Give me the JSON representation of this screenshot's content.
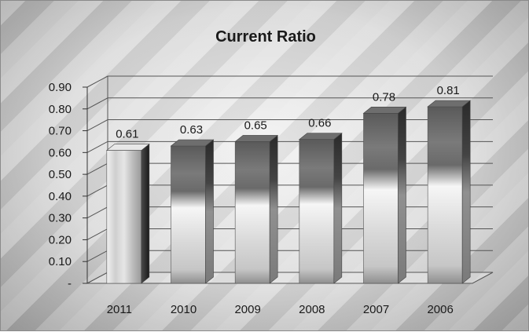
{
  "chart_data": {
    "type": "bar",
    "title": "Current Ratio",
    "categories": [
      "2011",
      "2010",
      "2009",
      "2008",
      "2007",
      "2006"
    ],
    "values": [
      0.61,
      0.63,
      0.65,
      0.66,
      0.78,
      0.81
    ],
    "data_labels": [
      "0.61",
      "0.63",
      "0.65",
      "0.66",
      "0.78",
      "0.81"
    ],
    "y_tick_labels": [
      "-",
      "0.10",
      "0.20",
      "0.30",
      "0.40",
      "0.50",
      "0.60",
      "0.70",
      "0.80",
      "0.90"
    ],
    "ylim": [
      0,
      0.9
    ],
    "xlabel": "",
    "ylabel": "",
    "grid": true,
    "style": "3d-column",
    "colors": {
      "highlight_bar": "#d8d8d8",
      "bar": "#9a9a9a",
      "gridline": "#555555",
      "text": "#1a1a1a"
    }
  }
}
